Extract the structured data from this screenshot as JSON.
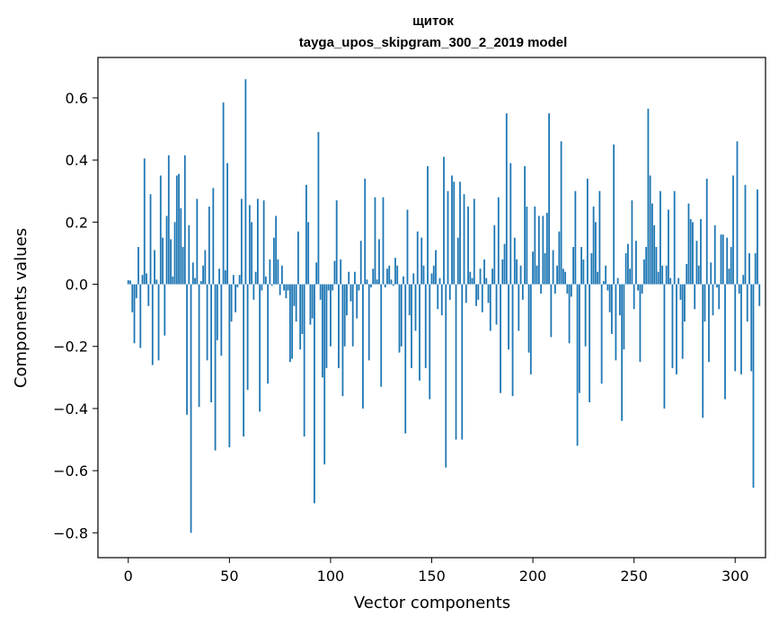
{
  "chart_data": {
    "type": "bar",
    "title": "щиток",
    "subtitle": "tayga_upos_skipgram_300_2_2019 model",
    "xlabel": "Vector components",
    "ylabel": "Components values",
    "xlim": [
      -15,
      315
    ],
    "ylim": [
      -0.88,
      0.73
    ],
    "xticks": [
      0,
      50,
      100,
      150,
      200,
      250,
      300
    ],
    "xtick_labels": [
      "0",
      "50",
      "100",
      "150",
      "200",
      "250",
      "300"
    ],
    "yticks": [
      0.6,
      0.4,
      0.2,
      0.0,
      -0.2,
      -0.4,
      -0.6,
      -0.8
    ],
    "ytick_labels": [
      "0.6",
      "0.4",
      "0.2",
      "0.0",
      "−0.2",
      "−0.4",
      "−0.6",
      "−0.8"
    ],
    "grid": false,
    "bar_color": "#1f77b4",
    "values": [
      0.013,
      0.012,
      -0.09,
      -0.19,
      -0.045,
      0.12,
      -0.205,
      0.03,
      0.405,
      0.035,
      -0.07,
      0.29,
      -0.26,
      0.11,
      0.015,
      -0.245,
      0.35,
      0.15,
      -0.165,
      0.22,
      0.415,
      0.145,
      0.025,
      0.2,
      0.35,
      0.355,
      0.245,
      0.12,
      0.415,
      -0.42,
      0.19,
      -0.8,
      0.07,
      0.02,
      0.275,
      -0.395,
      0.01,
      0.06,
      0.11,
      -0.245,
      0.25,
      -0.38,
      0.31,
      -0.535,
      -0.18,
      0.05,
      -0.23,
      0.585,
      0.045,
      0.39,
      -0.525,
      -0.12,
      0.03,
      -0.09,
      -0.01,
      0.03,
      0.275,
      -0.49,
      0.66,
      -0.34,
      0.255,
      0.2,
      -0.05,
      0.04,
      0.275,
      -0.41,
      -0.02,
      0.27,
      0.025,
      -0.32,
      0.08,
      -0.005,
      0.15,
      0.22,
      0.08,
      -0.035,
      0.06,
      -0.02,
      -0.045,
      -0.02,
      -0.25,
      -0.24,
      -0.07,
      -0.12,
      0.17,
      -0.21,
      -0.16,
      -0.49,
      0.32,
      0.2,
      -0.13,
      -0.11,
      -0.705,
      0.07,
      0.49,
      -0.05,
      -0.3,
      -0.58,
      -0.27,
      -0.02,
      -0.2,
      -0.02,
      0.075,
      0.27,
      -0.27,
      0.08,
      -0.36,
      -0.2,
      -0.1,
      0.04,
      -0.055,
      -0.2,
      0.04,
      -0.11,
      -0.02,
      0.14,
      -0.4,
      0.34,
      0.015,
      -0.245,
      -0.01,
      0.05,
      0.28,
      0.015,
      0.145,
      -0.33,
      0.28,
      -0.01,
      0.05,
      0.06,
      0.015,
      -0.005,
      0.085,
      0.06,
      -0.22,
      -0.2,
      0.025,
      -0.48,
      0.24,
      -0.1,
      -0.27,
      0.035,
      -0.15,
      0.17,
      -0.31,
      0.15,
      0.06,
      -0.27,
      0.38,
      -0.37,
      0.035,
      0.06,
      0.11,
      -0.08,
      0.02,
      -0.1,
      0.41,
      -0.59,
      0.3,
      -0.05,
      0.35,
      0.33,
      -0.5,
      0.15,
      0.33,
      -0.5,
      0.29,
      -0.06,
      0.25,
      0.04,
      0.02,
      0.275,
      -0.07,
      -0.05,
      0.05,
      -0.09,
      0.08,
      0.02,
      -0.06,
      -0.15,
      0.05,
      0.19,
      -0.13,
      0.28,
      -0.35,
      0.08,
      0.13,
      0.55,
      -0.21,
      0.39,
      -0.36,
      0.15,
      0.08,
      -0.15,
      0.06,
      -0.05,
      0.38,
      0.25,
      -0.22,
      -0.29,
      0.105,
      0.25,
      0.06,
      0.22,
      -0.03,
      0.22,
      0.1,
      0.23,
      0.55,
      -0.17,
      0.11,
      -0.03,
      0.06,
      0.17,
      0.46,
      0.05,
      0.04,
      -0.03,
      -0.19,
      -0.04,
      0.12,
      0.3,
      -0.52,
      -0.35,
      0.12,
      0.08,
      -0.2,
      0.34,
      -0.38,
      0.1,
      0.25,
      0.2,
      0.04,
      0.3,
      -0.32,
      0.01,
      0.06,
      -0.02,
      -0.09,
      -0.16,
      0.45,
      -0.245,
      0.02,
      -0.1,
      -0.44,
      -0.21,
      0.1,
      0.13,
      0.05,
      0.27,
      -0.08,
      0.14,
      -0.02,
      -0.25,
      -0.03,
      0.08,
      0.12,
      0.565,
      0.35,
      0.26,
      0.19,
      0.12,
      0.04,
      0.3,
      0.06,
      -0.4,
      0.06,
      0.24,
      0.02,
      -0.27,
      0.3,
      -0.29,
      0.02,
      -0.05,
      -0.24,
      -0.12,
      0.065,
      0.26,
      0.21,
      0.2,
      -0.08,
      0.14,
      0.06,
      0.21,
      -0.43,
      -0.12,
      0.34,
      -0.25,
      0.07,
      -0.1,
      0.19,
      -0.01,
      -0.08,
      0.16,
      0.16,
      -0.37,
      0.15,
      0.05,
      0.12,
      0.35,
      -0.28,
      0.46,
      -0.03,
      -0.29,
      0.03,
      0.32,
      -0.12,
      0.1,
      -0.28,
      -0.655,
      0.1,
      0.305,
      -0.07
    ]
  }
}
